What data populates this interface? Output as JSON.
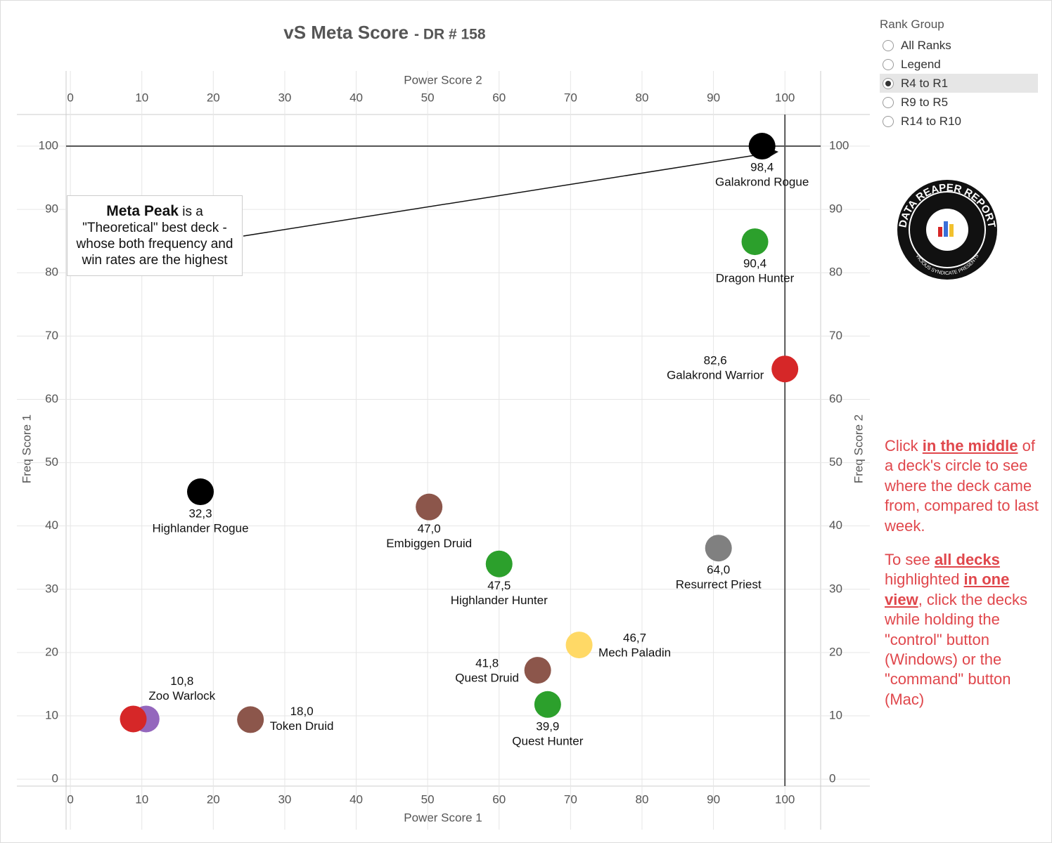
{
  "chart_data": {
    "type": "scatter",
    "title": "vS Meta Score",
    "subtitle": "- DR # 158",
    "x_label_bottom": "Power Score 1",
    "x_label_top": "Power Score 2",
    "y_label_left": "Freq Score 1",
    "y_label_right": "Freq Score 2",
    "xlim": [
      -0.6,
      105
    ],
    "ylim": [
      -1.1,
      105
    ],
    "xticks": [
      0,
      10,
      20,
      30,
      40,
      50,
      60,
      70,
      80,
      90,
      100
    ],
    "yticks": [
      0,
      10,
      20,
      30,
      40,
      50,
      60,
      70,
      80,
      90,
      100
    ],
    "grid": true,
    "reference_x": 100,
    "reference_y": 100,
    "names": [
      "Galakrond Rogue",
      "Dragon Hunter",
      "Galakrond Warrior",
      "Highlander Rogue",
      "Embiggen Druid",
      "Highlander Hunter",
      "Resurrect Priest",
      "Mech Paladin",
      "Quest Druid",
      "Quest Hunter",
      "Token Druid",
      "Zoo Warlock",
      null
    ],
    "x": [
      96.8,
      95.8,
      100,
      18.2,
      50.2,
      60.0,
      90.7,
      71.2,
      65.4,
      66.8,
      25.2,
      10.6,
      8.8
    ],
    "y": [
      100,
      84.9,
      64.8,
      45.4,
      43.0,
      34.0,
      36.5,
      21.2,
      17.2,
      11.8,
      9.4,
      9.5,
      9.5
    ],
    "values": [
      98.4,
      90.4,
      82.6,
      32.3,
      47.0,
      47.5,
      64.0,
      46.7,
      41.8,
      39.9,
      18.0,
      10.8,
      null
    ],
    "value_labels": [
      "98,4",
      "90,4",
      "82,6",
      "32,3",
      "47,0",
      "47,5",
      "64,0",
      "46,7",
      "41,8",
      "39,9",
      "18,0",
      "10,8",
      null
    ],
    "colors": [
      "#000000",
      "#2ca02c",
      "#d62728",
      "#000000",
      "#8c564b",
      "#2ca02c",
      "#808080",
      "#ffd966",
      "#8c564b",
      "#2ca02c",
      "#8c564b",
      "#9467bd",
      "#d62728"
    ],
    "annotation": {
      "bold": "Meta Peak",
      "text": " is a \"Theoretical\" best deck - whose both frequency and win rates are the highest"
    }
  },
  "sidebar": {
    "filter_title": "Rank Group",
    "options": [
      "All Ranks",
      "Legend",
      "R4 to R1",
      "R9 to R5",
      "R14 to R10"
    ],
    "selected_index": 2,
    "logo": {
      "title": "DATA REAPER REPORT",
      "subtitle": "VICIOUS SYNDICATE PRESENTS"
    },
    "help": [
      [
        {
          "text": "Click ",
          "strong": false
        },
        {
          "text": "in the middle",
          "strong": true
        },
        {
          "text": " of a deck's circle to see where the deck came from, compared to last week.",
          "strong": false
        }
      ],
      [
        {
          "text": "To see ",
          "strong": false
        },
        {
          "text": "all decks",
          "strong": true
        },
        {
          "text": " highlighted ",
          "strong": false
        },
        {
          "text": "in one view",
          "strong": true
        },
        {
          "text": ", click the decks while holding the \"control\" button (Windows) or the \"command\" button (Mac)",
          "strong": false
        }
      ]
    ]
  }
}
